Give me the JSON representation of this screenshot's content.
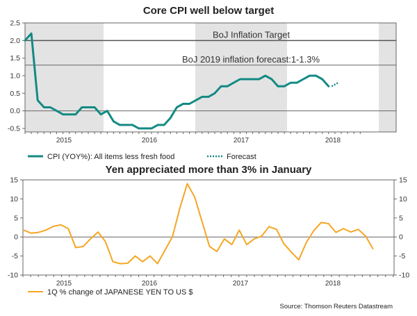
{
  "chart_data": [
    {
      "type": "line",
      "title": "Core CPI well below target",
      "xlabel": "",
      "ylabel": "",
      "x_tick_labels": [
        "2015",
        "2016",
        "2017",
        "2018"
      ],
      "y_ticks": [
        "-0.5",
        "0.0",
        "0.5",
        "1.0",
        "1.5",
        "2.0",
        "2.5"
      ],
      "ylim": [
        -0.6,
        2.5
      ],
      "shaded_years": [
        "2015",
        "2017"
      ],
      "grid": false,
      "legend_position": "bottom",
      "reference_lines": [
        {
          "label": "BoJ Inflation Target",
          "value": 2.0
        },
        {
          "label": "BoJ 2019 inflation forecast:1-1.3%",
          "value": 1.3
        }
      ],
      "series": [
        {
          "name": "CPI (YOY%): All items less fresh food",
          "color": "#138a83",
          "style": "solid",
          "values": [
            2.0,
            2.2,
            0.3,
            0.1,
            0.1,
            0.0,
            -0.1,
            -0.1,
            -0.1,
            0.1,
            0.1,
            0.1,
            -0.1,
            0.0,
            -0.3,
            -0.4,
            -0.4,
            -0.4,
            -0.5,
            -0.5,
            -0.5,
            -0.4,
            -0.4,
            -0.2,
            0.1,
            0.2,
            0.2,
            0.3,
            0.4,
            0.4,
            0.5,
            0.7,
            0.7,
            0.8,
            0.9,
            0.9,
            0.9,
            0.9,
            1.0,
            0.9,
            0.7,
            0.7,
            0.8,
            0.8,
            0.9,
            1.0,
            1.0,
            0.9,
            0.7
          ]
        },
        {
          "name": "Forecast",
          "color": "#138a83",
          "style": "dotted",
          "values": [
            0.7,
            0.8
          ]
        }
      ]
    },
    {
      "type": "line",
      "title": "Yen appreciated more than 3% in January",
      "xlabel": "",
      "ylabel": "",
      "x_tick_labels": [
        "2015",
        "2016",
        "2017",
        "2018"
      ],
      "y_ticks": [
        "-10",
        "-5",
        "0",
        "5",
        "10",
        "15"
      ],
      "ylim": [
        -10,
        15
      ],
      "grid": false,
      "legend_position": "bottom",
      "series": [
        {
          "name": "1Q % change of JAPANESE YEN TO US $",
          "color": "#f5a623",
          "style": "solid",
          "values": [
            1.8,
            1.0,
            1.2,
            1.8,
            2.8,
            3.2,
            2.2,
            -2.8,
            -2.5,
            -0.5,
            1.3,
            -1.2,
            -6.5,
            -7.0,
            -6.9,
            -5.0,
            -6.5,
            -5.0,
            -7.0,
            -3.5,
            0.0,
            7.5,
            14.0,
            10.5,
            4.0,
            -2.5,
            -3.8,
            -0.5,
            -2.0,
            1.8,
            -2.0,
            -0.5,
            0.2,
            2.7,
            2.0,
            -1.8,
            -4.0,
            -6.0,
            -1.5,
            1.6,
            3.8,
            3.5,
            1.2,
            2.2,
            1.3,
            2.0,
            0.2,
            -3.2
          ]
        }
      ]
    }
  ],
  "source_note": "Source: Thomson Reuters Datastream"
}
